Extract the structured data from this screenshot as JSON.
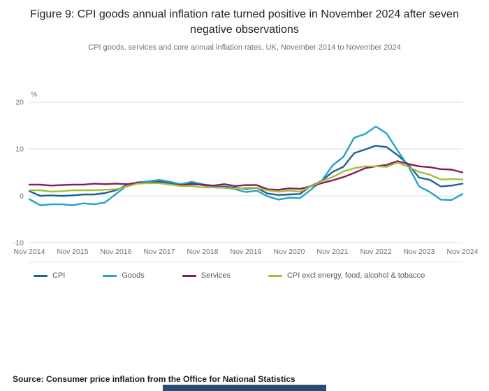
{
  "header": {
    "title": "Figure 9: CPI goods annual inflation rate turned positive in November 2024 after seven negative observations",
    "subtitle": "CPI goods, services and core annual inflation rates, UK, November 2014 to November 2024"
  },
  "chart_data": {
    "type": "line",
    "title": "CPI goods, services and core annual inflation rates, UK, November 2014 to November 2024",
    "unit_label": "%",
    "ylim": [
      -10,
      20
    ],
    "y_ticks": [
      20,
      10,
      0,
      -10
    ],
    "x_tick_labels": [
      "Nov 2014",
      "Nov 2015",
      "Nov 2016",
      "Nov 2017",
      "Nov 2018",
      "Nov 2019",
      "Nov 2020",
      "Nov 2021",
      "Nov 2022",
      "Nov 2023",
      "Nov 2024"
    ],
    "x_resolution": "quarterly points from Nov 2014 to Nov 2024",
    "grid": "horizontal",
    "legend_position": "bottom",
    "series": [
      {
        "name": "CPI",
        "color": "#206095",
        "values": [
          1.0,
          0.0,
          0.1,
          0.0,
          0.1,
          0.3,
          0.3,
          0.6,
          1.2,
          2.3,
          2.9,
          2.9,
          3.1,
          2.7,
          2.4,
          2.7,
          2.3,
          1.9,
          2.0,
          1.7,
          1.5,
          1.7,
          0.5,
          0.2,
          0.3,
          0.4,
          2.1,
          3.2,
          5.1,
          6.2,
          9.1,
          9.9,
          10.7,
          10.4,
          8.7,
          6.7,
          3.9,
          3.4,
          2.0,
          2.2,
          2.6
        ]
      },
      {
        "name": "Goods",
        "color": "#27a0cc",
        "values": [
          -0.7,
          -2.0,
          -1.8,
          -1.8,
          -2.0,
          -1.6,
          -1.8,
          -1.4,
          0.4,
          2.2,
          2.9,
          3.1,
          3.4,
          3.0,
          2.5,
          3.0,
          2.5,
          1.8,
          1.8,
          1.4,
          0.8,
          1.1,
          -0.1,
          -0.8,
          -0.4,
          -0.5,
          1.3,
          3.2,
          6.5,
          8.3,
          12.4,
          13.2,
          14.8,
          13.3,
          9.7,
          6.3,
          2.0,
          0.8,
          -0.8,
          -0.9,
          0.4
        ]
      },
      {
        "name": "Services",
        "color": "#871a5b",
        "values": [
          2.4,
          2.4,
          2.2,
          2.3,
          2.4,
          2.4,
          2.6,
          2.5,
          2.6,
          2.5,
          2.8,
          2.7,
          2.8,
          2.4,
          2.3,
          2.5,
          2.4,
          2.2,
          2.5,
          2.1,
          2.3,
          2.3,
          1.4,
          1.3,
          1.6,
          1.5,
          2.0,
          2.7,
          3.3,
          4.0,
          4.9,
          5.9,
          6.3,
          6.6,
          7.4,
          6.8,
          6.3,
          6.1,
          5.7,
          5.6,
          5.0
        ]
      },
      {
        "name": "CPI excl energy, food, alcohol & tobacco",
        "color": "#a8bd3a",
        "values": [
          1.2,
          1.2,
          0.9,
          1.0,
          1.2,
          1.2,
          1.2,
          1.3,
          1.4,
          2.0,
          2.6,
          2.7,
          2.7,
          2.4,
          2.1,
          2.1,
          1.8,
          1.8,
          1.7,
          1.5,
          1.7,
          1.7,
          1.2,
          0.9,
          1.1,
          0.9,
          2.0,
          3.1,
          4.0,
          5.2,
          5.9,
          6.3,
          6.3,
          6.2,
          7.1,
          6.2,
          5.1,
          4.5,
          3.5,
          3.6,
          3.5
        ]
      }
    ]
  },
  "source": {
    "text": "Source: Consumer price inflation from the Office for National Statistics"
  },
  "colors": {
    "grid": "#dedede",
    "axis_text": "#707070",
    "title_text": "#222222",
    "legend_text": "#58595b",
    "bottom_bar": "#2b4a74"
  }
}
